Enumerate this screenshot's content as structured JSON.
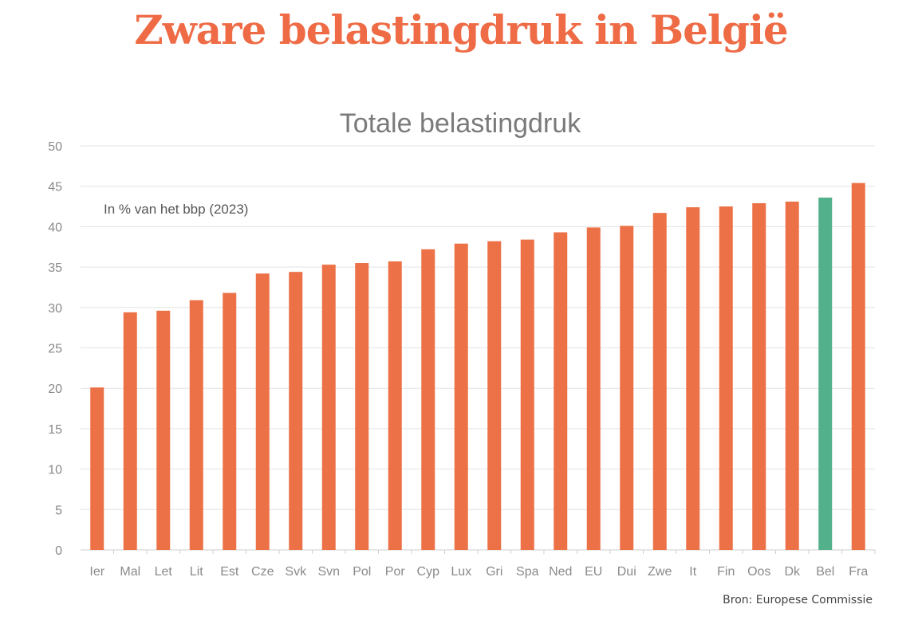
{
  "headline": "Zware belastingdruk in België",
  "colors": {
    "headline": "#ee6b45",
    "bar": "#ec7147",
    "highlight": "#52b08a",
    "grid": "#e3e3e3"
  },
  "chart_data": {
    "type": "bar",
    "title": "Totale belastingdruk",
    "subtitle": "In % van het bbp (2023)",
    "source": "Bron: Europese Commissie",
    "xlabel": "",
    "ylabel": "",
    "ylim": [
      0,
      50
    ],
    "yticks": [
      0,
      5,
      10,
      15,
      20,
      25,
      30,
      35,
      40,
      45,
      50
    ],
    "grid": true,
    "highlight": "Bel",
    "categories": [
      "Ier",
      "Mal",
      "Let",
      "Lit",
      "Est",
      "Cze",
      "Svk",
      "Svn",
      "Pol",
      "Por",
      "Cyp",
      "Lux",
      "Gri",
      "Spa",
      "Ned",
      "EU",
      "Dui",
      "Zwe",
      "It",
      "Fin",
      "Oos",
      "Dk",
      "Bel",
      "Fra"
    ],
    "values": [
      20.1,
      29.4,
      29.6,
      30.9,
      31.8,
      34.2,
      34.4,
      35.3,
      35.5,
      35.7,
      37.2,
      37.9,
      38.2,
      38.4,
      39.3,
      39.9,
      40.1,
      41.7,
      42.4,
      42.5,
      42.9,
      43.1,
      43.6,
      45.4
    ]
  }
}
